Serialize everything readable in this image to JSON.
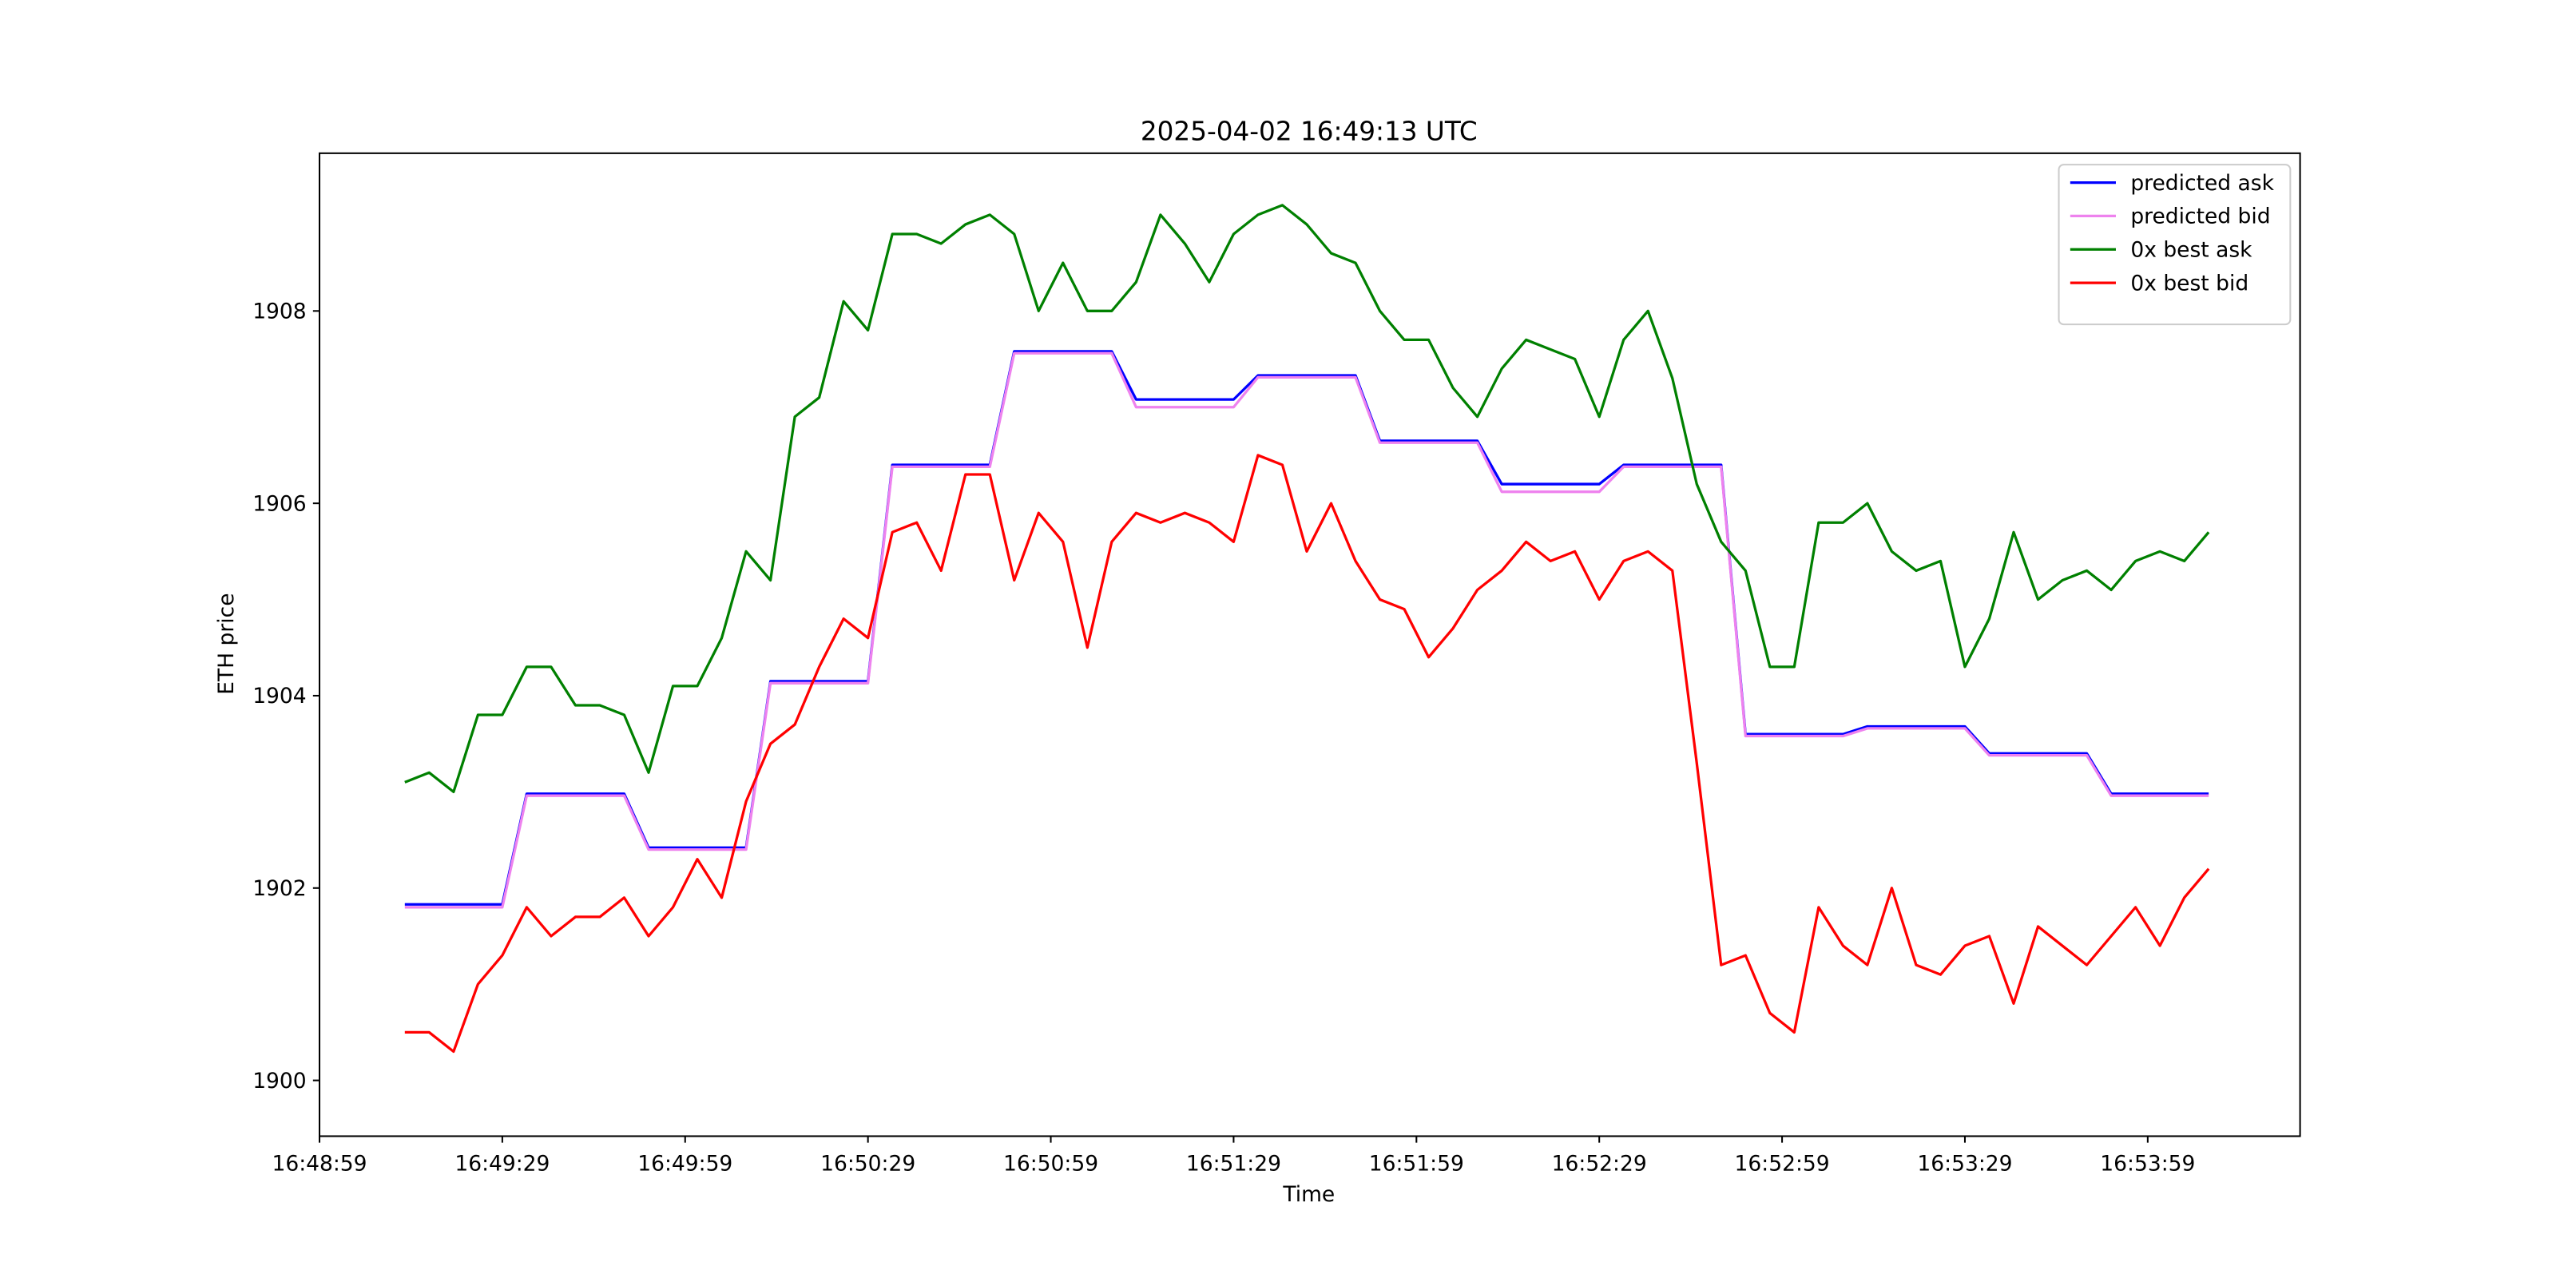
{
  "chart_data": {
    "type": "line",
    "title": "2025-04-02 16:49:13 UTC",
    "x_label": "Time",
    "y_label": "ETH price",
    "x": [
      "16:49:13",
      "16:49:17",
      "16:49:21",
      "16:49:25",
      "16:49:29",
      "16:49:33",
      "16:49:37",
      "16:49:41",
      "16:49:45",
      "16:49:49",
      "16:49:53",
      "16:49:57",
      "16:50:01",
      "16:50:05",
      "16:50:09",
      "16:50:13",
      "16:50:17",
      "16:50:21",
      "16:50:25",
      "16:50:29",
      "16:50:33",
      "16:50:37",
      "16:50:41",
      "16:50:45",
      "16:50:49",
      "16:50:53",
      "16:50:57",
      "16:51:01",
      "16:51:05",
      "16:51:09",
      "16:51:13",
      "16:51:17",
      "16:51:21",
      "16:51:25",
      "16:51:29",
      "16:51:33",
      "16:51:37",
      "16:51:41",
      "16:51:45",
      "16:51:49",
      "16:51:53",
      "16:51:57",
      "16:52:01",
      "16:52:05",
      "16:52:09",
      "16:52:13",
      "16:52:17",
      "16:52:21",
      "16:52:25",
      "16:52:29",
      "16:52:33",
      "16:52:37",
      "16:52:41",
      "16:52:45",
      "16:52:49",
      "16:52:53",
      "16:52:57",
      "16:53:01",
      "16:53:05",
      "16:53:09",
      "16:53:13",
      "16:53:17",
      "16:53:21",
      "16:53:25",
      "16:53:29",
      "16:53:33",
      "16:53:37",
      "16:53:41",
      "16:53:45",
      "16:53:49",
      "16:53:53",
      "16:53:57",
      "16:54:01",
      "16:54:05",
      "16:54:09"
    ],
    "series": [
      {
        "name": "predicted ask",
        "color": "#0000ff",
        "values": [
          1901.83,
          1901.83,
          1901.83,
          1901.83,
          1901.83,
          1902.98,
          1902.98,
          1902.98,
          1902.98,
          1902.98,
          1902.42,
          1902.42,
          1902.42,
          1902.42,
          1902.42,
          1904.15,
          1904.15,
          1904.15,
          1904.15,
          1904.15,
          1906.4,
          1906.4,
          1906.4,
          1906.4,
          1906.4,
          1907.58,
          1907.58,
          1907.58,
          1907.58,
          1907.58,
          1907.08,
          1907.08,
          1907.08,
          1907.08,
          1907.08,
          1907.33,
          1907.33,
          1907.33,
          1907.33,
          1907.33,
          1906.65,
          1906.65,
          1906.65,
          1906.65,
          1906.65,
          1906.2,
          1906.2,
          1906.2,
          1906.2,
          1906.2,
          1906.4,
          1906.4,
          1906.4,
          1906.4,
          1906.4,
          1903.6,
          1903.6,
          1903.6,
          1903.6,
          1903.6,
          1903.68,
          1903.68,
          1903.68,
          1903.68,
          1903.68,
          1903.4,
          1903.4,
          1903.4,
          1903.4,
          1903.4,
          1902.98,
          1902.98,
          1902.98,
          1902.98,
          1902.98
        ]
      },
      {
        "name": "predicted bid",
        "color": "#ee82ee",
        "values": [
          1901.8,
          1901.8,
          1901.8,
          1901.8,
          1901.8,
          1902.96,
          1902.96,
          1902.96,
          1902.96,
          1902.96,
          1902.4,
          1902.4,
          1902.4,
          1902.4,
          1902.4,
          1904.13,
          1904.13,
          1904.13,
          1904.13,
          1904.13,
          1906.38,
          1906.38,
          1906.38,
          1906.38,
          1906.38,
          1907.56,
          1907.56,
          1907.56,
          1907.56,
          1907.56,
          1907.0,
          1907.0,
          1907.0,
          1907.0,
          1907.0,
          1907.31,
          1907.31,
          1907.31,
          1907.31,
          1907.31,
          1906.63,
          1906.63,
          1906.63,
          1906.63,
          1906.63,
          1906.12,
          1906.12,
          1906.12,
          1906.12,
          1906.12,
          1906.38,
          1906.38,
          1906.38,
          1906.38,
          1906.38,
          1903.58,
          1903.58,
          1903.58,
          1903.58,
          1903.58,
          1903.66,
          1903.66,
          1903.66,
          1903.66,
          1903.66,
          1903.38,
          1903.38,
          1903.38,
          1903.38,
          1903.38,
          1902.96,
          1902.96,
          1902.96,
          1902.96,
          1902.96
        ]
      },
      {
        "name": "0x best ask",
        "color": "#008000",
        "values": [
          1903.1,
          1903.2,
          1903.0,
          1903.8,
          1903.8,
          1904.3,
          1904.3,
          1903.9,
          1903.9,
          1903.8,
          1903.2,
          1904.1,
          1904.1,
          1904.6,
          1905.5,
          1905.2,
          1906.9,
          1907.1,
          1908.1,
          1907.8,
          1908.8,
          1908.8,
          1908.7,
          1908.9,
          1909.0,
          1908.8,
          1908.0,
          1908.5,
          1908.0,
          1908.0,
          1908.3,
          1909.0,
          1908.7,
          1908.3,
          1908.8,
          1909.0,
          1909.1,
          1908.9,
          1908.6,
          1908.5,
          1908.0,
          1907.7,
          1907.7,
          1907.2,
          1906.9,
          1907.4,
          1907.7,
          1907.6,
          1907.5,
          1906.9,
          1907.7,
          1908.0,
          1907.3,
          1906.2,
          1905.6,
          1905.3,
          1904.3,
          1904.3,
          1905.8,
          1905.8,
          1906.0,
          1905.5,
          1905.3,
          1905.4,
          1904.3,
          1904.8,
          1905.7,
          1905.0,
          1905.2,
          1905.3,
          1905.1,
          1905.4,
          1905.5,
          1905.4,
          1905.7
        ]
      },
      {
        "name": "0x best bid",
        "color": "#ff0000",
        "values": [
          1900.5,
          1900.5,
          1900.3,
          1901.0,
          1901.3,
          1901.8,
          1901.5,
          1901.7,
          1901.7,
          1901.9,
          1901.5,
          1901.8,
          1902.3,
          1901.9,
          1902.9,
          1903.5,
          1903.7,
          1904.3,
          1904.8,
          1904.6,
          1905.7,
          1905.8,
          1905.3,
          1906.3,
          1906.3,
          1905.2,
          1905.9,
          1905.6,
          1904.5,
          1905.6,
          1905.9,
          1905.8,
          1905.9,
          1905.8,
          1905.6,
          1906.5,
          1906.4,
          1905.5,
          1906.0,
          1905.4,
          1905.0,
          1904.9,
          1904.4,
          1904.7,
          1905.1,
          1905.3,
          1905.6,
          1905.4,
          1905.5,
          1905.0,
          1905.4,
          1905.5,
          1905.3,
          1903.3,
          1901.2,
          1901.3,
          1900.7,
          1900.5,
          1901.8,
          1901.4,
          1901.2,
          1902.0,
          1901.2,
          1901.1,
          1901.4,
          1901.5,
          1900.8,
          1901.6,
          1901.4,
          1901.2,
          1901.5,
          1901.8,
          1901.4,
          1901.9,
          1902.2
        ]
      }
    ],
    "xlim": [
      "16:48:59",
      "16:54:24"
    ],
    "xticks": [
      "16:48:59",
      "16:49:29",
      "16:49:59",
      "16:50:29",
      "16:50:59",
      "16:51:29",
      "16:51:59",
      "16:52:29",
      "16:52:59",
      "16:53:29",
      "16:53:59"
    ],
    "ylim": [
      1899.42,
      1909.64
    ],
    "yticks": [
      1900,
      1902,
      1904,
      1906,
      1908
    ],
    "legend": "upper right"
  }
}
